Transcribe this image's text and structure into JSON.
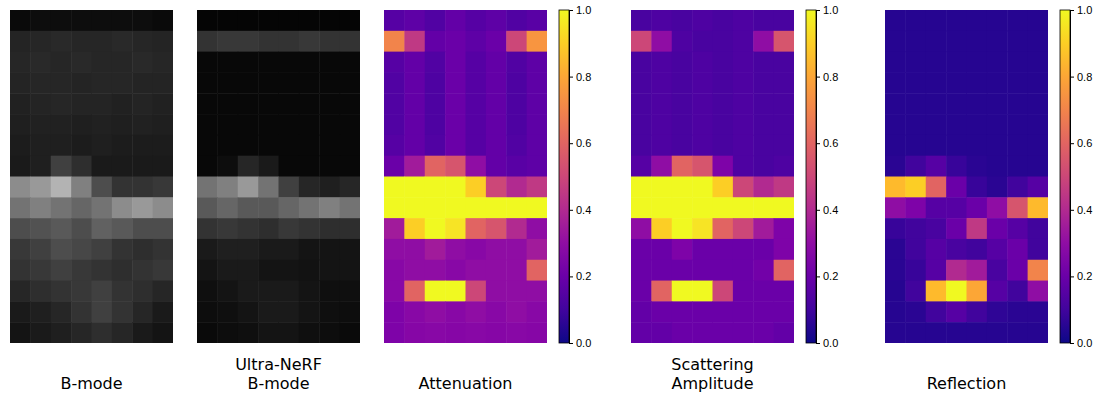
{
  "chart_data": [
    {
      "type": "heatmap",
      "title": [
        "B-mode"
      ],
      "color": "gray",
      "tick_labels": false,
      "zlim": [
        0,
        1
      ],
      "z": [
        [
          0.04,
          0.05,
          0.05,
          0.05,
          0.05,
          0.05,
          0.05,
          0.04
        ],
        [
          0.14,
          0.15,
          0.16,
          0.15,
          0.15,
          0.16,
          0.15,
          0.14
        ],
        [
          0.15,
          0.16,
          0.15,
          0.16,
          0.15,
          0.15,
          0.16,
          0.15
        ],
        [
          0.14,
          0.15,
          0.15,
          0.14,
          0.15,
          0.15,
          0.14,
          0.14
        ],
        [
          0.13,
          0.14,
          0.15,
          0.14,
          0.14,
          0.13,
          0.14,
          0.13
        ],
        [
          0.12,
          0.13,
          0.13,
          0.12,
          0.13,
          0.12,
          0.13,
          0.12
        ],
        [
          0.11,
          0.12,
          0.12,
          0.11,
          0.12,
          0.11,
          0.11,
          0.11
        ],
        [
          0.1,
          0.12,
          0.25,
          0.18,
          0.1,
          0.1,
          0.1,
          0.1
        ],
        [
          0.55,
          0.6,
          0.7,
          0.5,
          0.3,
          0.2,
          0.2,
          0.22
        ],
        [
          0.45,
          0.5,
          0.45,
          0.4,
          0.45,
          0.55,
          0.6,
          0.55
        ],
        [
          0.3,
          0.32,
          0.35,
          0.3,
          0.38,
          0.35,
          0.3,
          0.3
        ],
        [
          0.22,
          0.25,
          0.3,
          0.28,
          0.25,
          0.2,
          0.18,
          0.2
        ],
        [
          0.2,
          0.22,
          0.25,
          0.22,
          0.2,
          0.18,
          0.2,
          0.22
        ],
        [
          0.15,
          0.18,
          0.2,
          0.22,
          0.25,
          0.2,
          0.18,
          0.15
        ],
        [
          0.1,
          0.12,
          0.15,
          0.2,
          0.25,
          0.2,
          0.15,
          0.1
        ],
        [
          0.08,
          0.1,
          0.12,
          0.15,
          0.18,
          0.15,
          0.1,
          0.08
        ]
      ]
    },
    {
      "type": "heatmap",
      "title": [
        "Ultra-NeRF",
        "B-mode"
      ],
      "color": "gray",
      "tick_labels": false,
      "zlim": [
        0,
        1
      ],
      "z": [
        [
          0.02,
          0.02,
          0.02,
          0.02,
          0.02,
          0.02,
          0.02,
          0.02
        ],
        [
          0.2,
          0.22,
          0.22,
          0.2,
          0.2,
          0.22,
          0.2,
          0.2
        ],
        [
          0.03,
          0.03,
          0.03,
          0.03,
          0.03,
          0.03,
          0.03,
          0.03
        ],
        [
          0.03,
          0.03,
          0.03,
          0.03,
          0.03,
          0.03,
          0.03,
          0.03
        ],
        [
          0.03,
          0.03,
          0.03,
          0.03,
          0.03,
          0.03,
          0.03,
          0.03
        ],
        [
          0.03,
          0.03,
          0.03,
          0.03,
          0.03,
          0.03,
          0.03,
          0.03
        ],
        [
          0.03,
          0.03,
          0.03,
          0.03,
          0.03,
          0.03,
          0.03,
          0.03
        ],
        [
          0.03,
          0.05,
          0.15,
          0.1,
          0.03,
          0.03,
          0.03,
          0.03
        ],
        [
          0.45,
          0.5,
          0.6,
          0.45,
          0.25,
          0.15,
          0.12,
          0.15
        ],
        [
          0.35,
          0.4,
          0.35,
          0.35,
          0.4,
          0.45,
          0.5,
          0.45
        ],
        [
          0.2,
          0.22,
          0.2,
          0.18,
          0.22,
          0.2,
          0.18,
          0.18
        ],
        [
          0.1,
          0.12,
          0.12,
          0.1,
          0.1,
          0.08,
          0.08,
          0.08
        ],
        [
          0.08,
          0.1,
          0.1,
          0.08,
          0.08,
          0.07,
          0.08,
          0.08
        ],
        [
          0.06,
          0.08,
          0.1,
          0.1,
          0.1,
          0.08,
          0.06,
          0.06
        ],
        [
          0.05,
          0.06,
          0.08,
          0.1,
          0.1,
          0.08,
          0.06,
          0.05
        ],
        [
          0.04,
          0.05,
          0.06,
          0.08,
          0.08,
          0.06,
          0.05,
          0.04
        ]
      ]
    },
    {
      "type": "heatmap",
      "title": [
        "Attenuation"
      ],
      "color": "plasma",
      "tick_labels": false,
      "zlim": [
        0,
        1
      ],
      "zticks": [
        {
          "value": 0,
          "label": "0.0"
        },
        {
          "value": 0.2,
          "label": "0.2"
        },
        {
          "value": 0.4,
          "label": "0.4"
        },
        {
          "value": 0.6,
          "label": "0.6"
        },
        {
          "value": 0.8,
          "label": "0.8"
        },
        {
          "value": 1,
          "label": "1.0"
        }
      ],
      "z": [
        [
          0.15,
          0.17,
          0.14,
          0.18,
          0.15,
          0.17,
          0.14,
          0.16
        ],
        [
          0.7,
          0.45,
          0.18,
          0.2,
          0.17,
          0.2,
          0.5,
          0.75
        ],
        [
          0.15,
          0.18,
          0.14,
          0.2,
          0.15,
          0.18,
          0.14,
          0.17
        ],
        [
          0.14,
          0.18,
          0.13,
          0.2,
          0.15,
          0.18,
          0.13,
          0.17
        ],
        [
          0.14,
          0.18,
          0.13,
          0.2,
          0.15,
          0.18,
          0.13,
          0.17
        ],
        [
          0.14,
          0.18,
          0.13,
          0.2,
          0.15,
          0.18,
          0.13,
          0.17
        ],
        [
          0.15,
          0.18,
          0.14,
          0.2,
          0.15,
          0.18,
          0.14,
          0.17
        ],
        [
          0.2,
          0.35,
          0.6,
          0.55,
          0.3,
          0.18,
          0.16,
          0.17
        ],
        [
          1,
          1,
          1,
          1,
          0.9,
          0.5,
          0.4,
          0.45
        ],
        [
          1,
          1,
          1,
          1,
          1,
          1,
          1,
          1
        ],
        [
          0.35,
          0.9,
          1,
          0.95,
          0.6,
          0.55,
          0.4,
          0.3
        ],
        [
          0.3,
          0.3,
          0.35,
          0.3,
          0.28,
          0.3,
          0.3,
          0.35
        ],
        [
          0.28,
          0.3,
          0.3,
          0.28,
          0.3,
          0.3,
          0.3,
          0.6
        ],
        [
          0.28,
          0.6,
          1,
          1,
          0.5,
          0.3,
          0.3,
          0.3
        ],
        [
          0.25,
          0.28,
          0.3,
          0.28,
          0.3,
          0.28,
          0.3,
          0.28
        ],
        [
          0.25,
          0.27,
          0.28,
          0.27,
          0.28,
          0.27,
          0.28,
          0.27
        ]
      ]
    },
    {
      "type": "heatmap",
      "title": [
        "Scattering",
        "Amplitude"
      ],
      "color": "plasma",
      "tick_labels": false,
      "zlim": [
        0,
        1
      ],
      "zticks": [
        {
          "value": 0,
          "label": "0.0"
        },
        {
          "value": 0.2,
          "label": "0.2"
        },
        {
          "value": 0.4,
          "label": "0.4"
        },
        {
          "value": 0.6,
          "label": "0.6"
        },
        {
          "value": 0.8,
          "label": "0.8"
        },
        {
          "value": 1,
          "label": "1.0"
        }
      ],
      "z": [
        [
          0.12,
          0.13,
          0.12,
          0.13,
          0.12,
          0.13,
          0.12,
          0.12
        ],
        [
          0.5,
          0.3,
          0.13,
          0.12,
          0.12,
          0.13,
          0.3,
          0.55
        ],
        [
          0.12,
          0.13,
          0.12,
          0.13,
          0.12,
          0.13,
          0.12,
          0.12
        ],
        [
          0.12,
          0.13,
          0.12,
          0.13,
          0.12,
          0.13,
          0.12,
          0.12
        ],
        [
          0.12,
          0.13,
          0.12,
          0.13,
          0.12,
          0.13,
          0.12,
          0.12
        ],
        [
          0.12,
          0.13,
          0.12,
          0.13,
          0.12,
          0.13,
          0.12,
          0.12
        ],
        [
          0.12,
          0.13,
          0.12,
          0.13,
          0.12,
          0.13,
          0.12,
          0.12
        ],
        [
          0.15,
          0.3,
          0.6,
          0.55,
          0.25,
          0.13,
          0.12,
          0.13
        ],
        [
          1,
          1,
          1,
          1,
          0.9,
          0.5,
          0.4,
          0.45
        ],
        [
          1,
          1,
          1,
          1,
          1,
          1,
          1,
          1
        ],
        [
          0.3,
          0.9,
          1,
          0.95,
          0.6,
          0.5,
          0.35,
          0.25
        ],
        [
          0.2,
          0.2,
          0.25,
          0.2,
          0.2,
          0.2,
          0.2,
          0.25
        ],
        [
          0.2,
          0.2,
          0.2,
          0.2,
          0.2,
          0.2,
          0.22,
          0.6
        ],
        [
          0.2,
          0.6,
          1,
          1,
          0.5,
          0.2,
          0.2,
          0.2
        ],
        [
          0.18,
          0.2,
          0.2,
          0.2,
          0.2,
          0.2,
          0.2,
          0.2
        ],
        [
          0.18,
          0.18,
          0.2,
          0.2,
          0.2,
          0.2,
          0.2,
          0.18
        ]
      ]
    },
    {
      "type": "heatmap",
      "title": [
        "Reflection"
      ],
      "color": "plasma",
      "tick_labels": false,
      "zlim": [
        0,
        1
      ],
      "zticks": [
        {
          "value": 0,
          "label": "0.0"
        },
        {
          "value": 0.2,
          "label": "0.2"
        },
        {
          "value": 0.4,
          "label": "0.4"
        },
        {
          "value": 0.6,
          "label": "0.6"
        },
        {
          "value": 0.8,
          "label": "0.8"
        },
        {
          "value": 1,
          "label": "1.0"
        }
      ],
      "z": [
        [
          0.04,
          0.04,
          0.04,
          0.04,
          0.04,
          0.04,
          0.04,
          0.04
        ],
        [
          0.04,
          0.04,
          0.04,
          0.04,
          0.04,
          0.04,
          0.04,
          0.04
        ],
        [
          0.04,
          0.04,
          0.04,
          0.04,
          0.04,
          0.04,
          0.04,
          0.04
        ],
        [
          0.04,
          0.04,
          0.04,
          0.04,
          0.04,
          0.04,
          0.04,
          0.04
        ],
        [
          0.04,
          0.04,
          0.04,
          0.04,
          0.04,
          0.04,
          0.04,
          0.04
        ],
        [
          0.04,
          0.04,
          0.04,
          0.04,
          0.04,
          0.04,
          0.04,
          0.04
        ],
        [
          0.04,
          0.04,
          0.04,
          0.04,
          0.04,
          0.04,
          0.04,
          0.04
        ],
        [
          0.05,
          0.1,
          0.15,
          0.08,
          0.05,
          0.04,
          0.04,
          0.04
        ],
        [
          0.85,
          0.9,
          0.6,
          0.2,
          0.08,
          0.05,
          0.1,
          0.15
        ],
        [
          0.3,
          0.25,
          0.15,
          0.15,
          0.2,
          0.3,
          0.55,
          0.85
        ],
        [
          0.08,
          0.1,
          0.12,
          0.2,
          0.45,
          0.2,
          0.15,
          0.1
        ],
        [
          0.05,
          0.1,
          0.15,
          0.12,
          0.1,
          0.15,
          0.2,
          0.1
        ],
        [
          0.05,
          0.08,
          0.15,
          0.4,
          0.35,
          0.12,
          0.2,
          0.7
        ],
        [
          0.04,
          0.1,
          0.85,
          1,
          0.8,
          0.15,
          0.1,
          0.3
        ],
        [
          0.04,
          0.05,
          0.1,
          0.15,
          0.1,
          0.06,
          0.05,
          0.05
        ],
        [
          0.04,
          0.04,
          0.04,
          0.04,
          0.04,
          0.04,
          0.04,
          0.04
        ]
      ]
    }
  ]
}
